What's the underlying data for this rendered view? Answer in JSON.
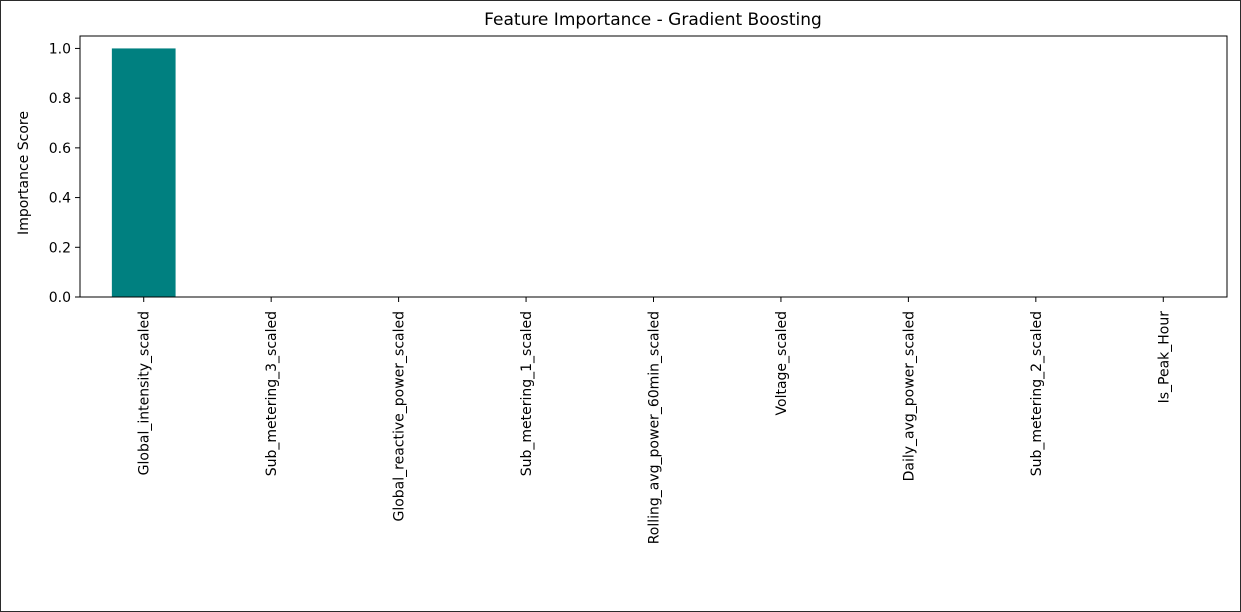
{
  "chart_data": {
    "type": "bar",
    "title": "Feature Importance - Gradient Boosting",
    "xlabel": "",
    "ylabel": "Importance Score",
    "categories": [
      "Global_intensity_scaled",
      "Sub_metering_3_scaled",
      "Global_reactive_power_scaled",
      "Sub_metering_1_scaled",
      "Rolling_avg_power_60min_scaled",
      "Voltage_scaled",
      "Daily_avg_power_scaled",
      "Sub_metering_2_scaled",
      "Is_Peak_Hour"
    ],
    "values": [
      1.0,
      0.0,
      0.0,
      0.0,
      0.0,
      0.0,
      0.0,
      0.0,
      0.0
    ],
    "ylim": [
      0,
      1.05
    ],
    "yticks": [
      "0.0",
      "0.2",
      "0.4",
      "0.6",
      "0.8",
      "1.0"
    ],
    "grid": false,
    "bar_color": "#008080"
  }
}
